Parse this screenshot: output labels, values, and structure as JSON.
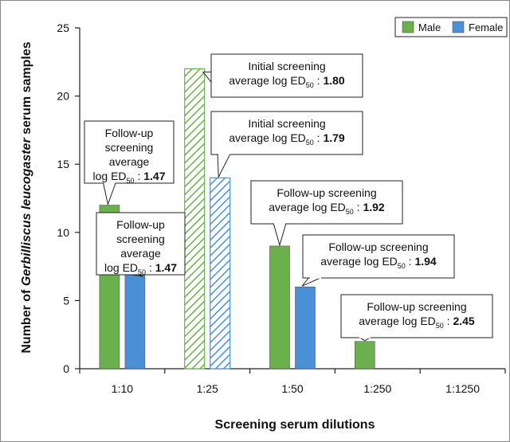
{
  "chart_data": {
    "type": "bar",
    "categories": [
      "1:10",
      "1:25",
      "1:50",
      "1:250",
      "1:1250"
    ],
    "series": [
      {
        "name": "Male",
        "color": "#6ab04c",
        "values": [
          12,
          22,
          9,
          2,
          0
        ],
        "hatched": [
          false,
          true,
          false,
          false,
          false
        ]
      },
      {
        "name": "Female",
        "color": "#4a90d9",
        "values": [
          7,
          14,
          6,
          0,
          0
        ],
        "hatched": [
          false,
          true,
          false,
          false,
          false
        ]
      }
    ],
    "xlabel": "Screening serum dilutions",
    "ylabel": {
      "prefix": "Number of ",
      "italic": "Gerbilliscus leucogaster",
      "suffix": " serum samples"
    },
    "ylim": [
      0,
      25
    ],
    "yticks": [
      0,
      5,
      10,
      15,
      20,
      25
    ],
    "grid": false,
    "legend_placement": "top-right",
    "annotations": [
      {
        "series": 0,
        "category": 0,
        "lines": [
          "Follow-up",
          "screening",
          "average"
        ],
        "stat_label": "log ED",
        "stat_sub": "50",
        "stat_value": "1.47"
      },
      {
        "series": 1,
        "category": 0,
        "lines": [
          "Follow-up",
          "screening",
          "average"
        ],
        "stat_label": "log ED",
        "stat_sub": "50",
        "stat_value": "1.47"
      },
      {
        "series": 0,
        "category": 1,
        "lines": [
          "Initial screening"
        ],
        "stat_label": "average log ED",
        "stat_sub": "50",
        "stat_value": "1.80"
      },
      {
        "series": 1,
        "category": 1,
        "lines": [
          "Initial screening"
        ],
        "stat_label": "average log ED",
        "stat_sub": "50",
        "stat_value": "1.79"
      },
      {
        "series": 0,
        "category": 2,
        "lines": [
          "Follow-up screening"
        ],
        "stat_label": "average log ED",
        "stat_sub": "50",
        "stat_value": "1.92"
      },
      {
        "series": 1,
        "category": 2,
        "lines": [
          "Follow-up screening"
        ],
        "stat_label": "average log ED",
        "stat_sub": "50",
        "stat_value": "1.94"
      },
      {
        "series": 0,
        "category": 3,
        "lines": [
          "Follow-up screening"
        ],
        "stat_label": "average log ED",
        "stat_sub": "50",
        "stat_value": "2.45"
      }
    ]
  }
}
